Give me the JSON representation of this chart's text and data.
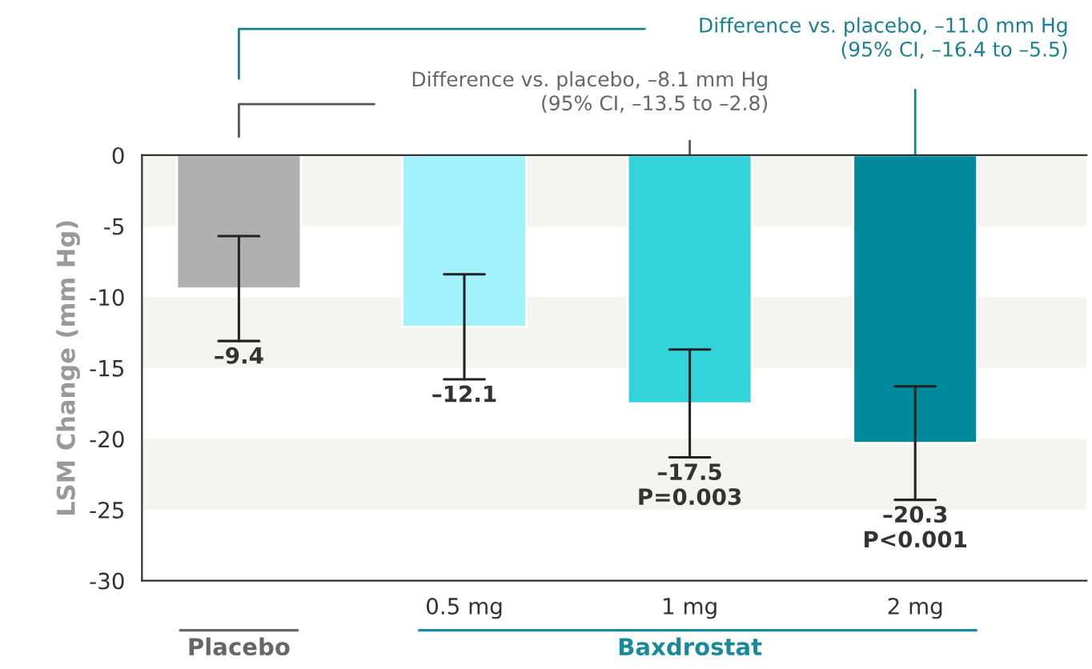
{
  "chart_data": {
    "type": "bar",
    "ylabel": "LSM Change (mm Hg)",
    "categories": [
      null,
      "0.5 mg",
      "1 mg",
      "2 mg"
    ],
    "values": [
      -9.4,
      -12.1,
      -17.5,
      -20.3
    ],
    "colors": [
      "#b0b0b0",
      "#a2f2fb",
      "#33d3da",
      "#008a9c"
    ],
    "errors": [
      [
        -13.1,
        -5.7
      ],
      [
        -15.8,
        -8.4
      ],
      [
        -21.3,
        -13.7
      ],
      [
        -24.3,
        -16.3
      ]
    ],
    "value_labels": [
      "–9.4",
      "–12.1",
      "–17.5\nP=0.003",
      "–20.3\nP<0.001"
    ],
    "ylim": [
      -30,
      0
    ],
    "yticks": [
      -30,
      -25,
      -20,
      -15,
      -10,
      -5,
      0
    ],
    "bands": [
      {
        "axis": "y",
        "from": -5,
        "to": 0,
        "color": "#f3f3ef"
      },
      {
        "axis": "y",
        "from": -15,
        "to": -10,
        "color": "#f3f3ef"
      },
      {
        "axis": "y",
        "from": -25,
        "to": -20,
        "color": "#f3f3ef"
      }
    ],
    "annotations": [
      "Difference vs. placebo, –8.1 mm Hg\n(95% CI, –13.5 to –2.8)",
      "Difference vs. placebo, –11.0 mm Hg\n(95% CI, –16.4 to –5.5)",
      "Placebo",
      "Baxdrostat"
    ],
    "grid": false,
    "legend": false
  }
}
